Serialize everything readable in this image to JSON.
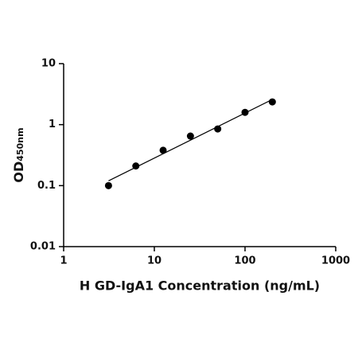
{
  "chart_data": {
    "type": "scatter",
    "xlabel": "H GD-IgA1 Concentration (ng/mL)",
    "ylabel": "OD",
    "ylabel_sub": "450nm",
    "x": [
      3.125,
      6.25,
      12.5,
      25,
      50,
      100,
      200
    ],
    "values": [
      0.1,
      0.21,
      0.38,
      0.65,
      0.85,
      1.59,
      2.36
    ],
    "color": "#000000",
    "log_x": true,
    "log_y": true,
    "fit_line": true,
    "xlim": [
      1,
      1000
    ],
    "xticks": [
      1,
      10,
      100,
      1000
    ],
    "ylim": [
      0.01,
      10
    ],
    "yticks": [
      0.01,
      0.1,
      1,
      10
    ]
  }
}
